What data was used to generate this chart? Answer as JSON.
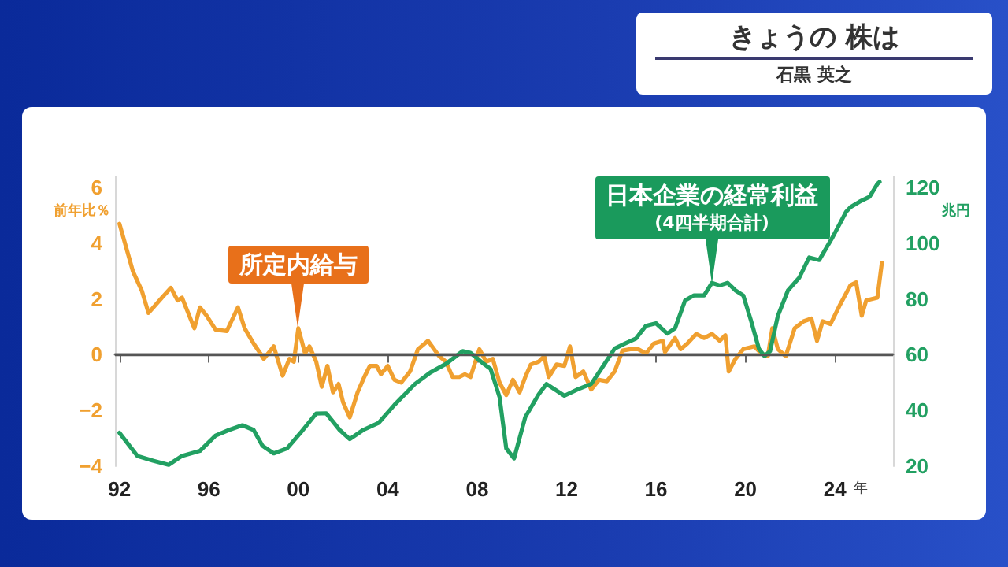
{
  "chart_data": {
    "type": "line",
    "title": "きょうの 株は",
    "subtitle": "石黒 英之",
    "xlabel": "年",
    "ylabel": "前年比％",
    "y2label": "兆円",
    "annotations": [
      {
        "text": "所定内給与",
        "x": 2000.0,
        "y": 0.95
      },
      {
        "text": "日本企業の経常利益\n(4四半期合計)",
        "x": 2018.5,
        "y": 2.58
      }
    ],
    "series": [
      {
        "color": "#f0a030",
        "x": [
          1992.0,
          1992.6,
          1993.0,
          1993.3,
          1993.9,
          1994.3,
          1994.6,
          1994.8,
          1995.35,
          1995.6,
          1995.9,
          1996.3,
          1996.8,
          1997.3,
          1997.6,
          1998.0,
          1998.3,
          1998.45,
          1998.9,
          1999.3,
          1999.6,
          1999.8,
          2000.0,
          2000.3,
          2000.5,
          2000.8,
          2001.05,
          2001.3,
          2001.55,
          2001.8,
          2002.0,
          2002.3,
          2002.65,
          2002.95,
          2003.2,
          2003.5,
          2003.7,
          2004.0,
          2004.3,
          2004.6,
          2005.0,
          2005.35,
          2005.8,
          2006.3,
          2006.6,
          2006.9,
          2007.2,
          2007.45,
          2007.7,
          2008.1,
          2008.4,
          2008.7,
          2009.0,
          2009.3,
          2009.6,
          2009.9,
          2010.15,
          2010.4,
          2010.75,
          2011.0,
          2011.2,
          2011.55,
          2011.9,
          2012.15,
          2012.4,
          2012.75,
          2013.1,
          2013.45,
          2013.8,
          2014.15,
          2014.5,
          2014.85,
          2015.2,
          2015.55,
          2015.9,
          2016.3,
          2016.4,
          2016.85,
          2017.1,
          2017.4,
          2017.8,
          2018.15,
          2018.5,
          2018.85,
          2019.1,
          2019.25,
          2019.55,
          2019.9,
          2020.4,
          2020.7,
          2021.0,
          2021.2,
          2021.45,
          2021.8,
          2022.2,
          2022.6,
          2022.95,
          2023.2,
          2023.45,
          2023.8,
          2024.2,
          2024.7,
          2024.95,
          2025.2,
          2025.4,
          2025.9,
          2026.1
        ],
        "values": [
          4.7,
          3.0,
          2.3,
          1.5,
          2.05,
          2.4,
          1.95,
          2.05,
          0.95,
          1.7,
          1.4,
          0.9,
          0.85,
          1.7,
          0.95,
          0.4,
          0.05,
          -0.15,
          0.3,
          -0.75,
          -0.15,
          -0.25,
          0.95,
          0.05,
          0.3,
          -0.25,
          -1.15,
          -0.4,
          -1.35,
          -1.05,
          -1.7,
          -2.25,
          -1.35,
          -0.8,
          -0.4,
          -0.4,
          -0.7,
          -0.4,
          -0.9,
          -1.0,
          -0.6,
          0.2,
          0.5,
          -0.05,
          -0.25,
          -0.8,
          -0.8,
          -0.7,
          -0.8,
          0.2,
          -0.25,
          -0.15,
          -1.0,
          -1.45,
          -0.9,
          -1.35,
          -0.8,
          -0.35,
          -0.25,
          -0.05,
          -0.8,
          -0.35,
          -0.4,
          0.3,
          -0.8,
          -0.6,
          -1.25,
          -0.9,
          -0.95,
          -0.6,
          0.15,
          0.2,
          0.2,
          0.05,
          0.4,
          0.5,
          0.1,
          0.6,
          0.2,
          0.4,
          0.75,
          0.6,
          0.75,
          0.5,
          0.7,
          -0.6,
          -0.15,
          0.2,
          0.3,
          0.05,
          -0.05,
          0.95,
          0.2,
          -0.05,
          0.95,
          1.2,
          1.3,
          0.5,
          1.2,
          1.1,
          1.75,
          2.5,
          2.6,
          1.4,
          1.95,
          2.05,
          3.3
        ]
      },
      {
        "color": "#22a062",
        "axis": "y2",
        "x": [
          1992.0,
          1992.8,
          1993.5,
          1994.2,
          1994.8,
          1995.6,
          1996.3,
          1996.9,
          1997.5,
          1998.0,
          1998.4,
          1998.9,
          1999.5,
          2000.1,
          2000.8,
          2001.25,
          2001.85,
          2002.3,
          2002.9,
          2003.6,
          2004.3,
          2005.2,
          2005.9,
          2006.6,
          2007.35,
          2007.7,
          2008.3,
          2008.6,
          2009.0,
          2009.3,
          2009.65,
          2010.15,
          2010.75,
          2011.1,
          2011.9,
          2012.5,
          2013.1,
          2013.55,
          2014.15,
          2014.6,
          2015.1,
          2015.55,
          2016.0,
          2016.5,
          2016.85,
          2017.3,
          2017.7,
          2018.15,
          2018.5,
          2018.85,
          2019.2,
          2019.55,
          2019.9,
          2020.25,
          2020.6,
          2020.85,
          2021.1,
          2021.45,
          2021.9,
          2022.4,
          2022.85,
          2023.3,
          2023.9,
          2024.5,
          2024.7,
          2025.1,
          2025.55,
          2025.9,
          2026.0
        ],
        "values": [
          32,
          23.7,
          22,
          20.5,
          23.7,
          25.5,
          31,
          33,
          34.7,
          33,
          27.3,
          24.6,
          26.4,
          32,
          38.9,
          39,
          33,
          29.7,
          33,
          35.6,
          42,
          49.4,
          53.6,
          56.7,
          61.3,
          60.7,
          56.7,
          54.9,
          44.8,
          26.4,
          22.8,
          37.6,
          45.8,
          49.5,
          45.3,
          47.6,
          49.5,
          54.9,
          62.2,
          64,
          65.8,
          70.4,
          71.3,
          67.6,
          69.5,
          79.5,
          81.3,
          81.3,
          85.8,
          84.9,
          85.8,
          83.1,
          81.3,
          72.2,
          62.2,
          59.5,
          61.3,
          74,
          83.1,
          87.6,
          94.9,
          94,
          102.2,
          111.3,
          113,
          114.9,
          116.7,
          121.3,
          122
        ]
      }
    ],
    "xlim": [
      1991.8,
      2026.6
    ],
    "xticks": [
      {
        "value": 1992,
        "label": "92"
      },
      {
        "value": 1996,
        "label": "96"
      },
      {
        "value": 2000,
        "label": "00"
      },
      {
        "value": 2004,
        "label": "04"
      },
      {
        "value": 2008,
        "label": "08"
      },
      {
        "value": 2012,
        "label": "12"
      },
      {
        "value": 2016,
        "label": "16"
      },
      {
        "value": 2020,
        "label": "20"
      },
      {
        "value": 2024,
        "label": "24"
      }
    ],
    "ylim": [
      -4,
      6.4
    ],
    "yticks": [
      {
        "value": -4,
        "label": "−4"
      },
      {
        "value": -2,
        "label": "−2"
      },
      0,
      2,
      4,
      6
    ],
    "y2lim": [
      20,
      124
    ],
    "y2ticks": [
      20,
      40,
      60,
      80,
      100,
      120
    ],
    "ref_lines": [
      {
        "axis": "y",
        "value": 0,
        "color": "#555555"
      }
    ],
    "grid": false,
    "marker": "none",
    "line_style": "solid"
  }
}
